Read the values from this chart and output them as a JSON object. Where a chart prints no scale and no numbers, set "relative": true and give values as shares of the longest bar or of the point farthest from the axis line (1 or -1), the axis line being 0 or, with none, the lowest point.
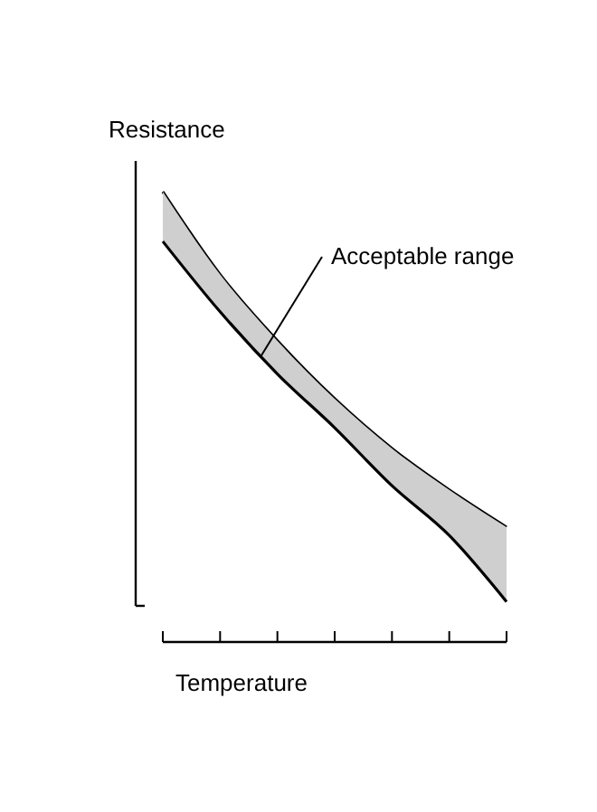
{
  "chart_data": {
    "type": "line",
    "relative": true,
    "ylabel": "Resistance",
    "xlabel": "Temperature",
    "categories": [
      null,
      null,
      null,
      null,
      null,
      null,
      null
    ],
    "series": [
      {
        "color": "#000000",
        "values": [
          1,
          0.8,
          0.64,
          0.5,
          0.38,
          0.28,
          0.19
        ]
      },
      {
        "color": "#000000",
        "values": [
          0.88,
          0.71,
          0.56,
          0.43,
          0.29,
          0.17,
          0.01
        ],
        "lower": [
          0.88,
          0.71,
          0.56,
          0.43,
          0.29,
          0.17,
          0.01
        ],
        "upper": [
          1,
          0.8,
          0.64,
          0.5,
          0.38,
          0.28,
          0.19
        ]
      }
    ],
    "annotations": [
      "Acceptable range"
    ]
  }
}
